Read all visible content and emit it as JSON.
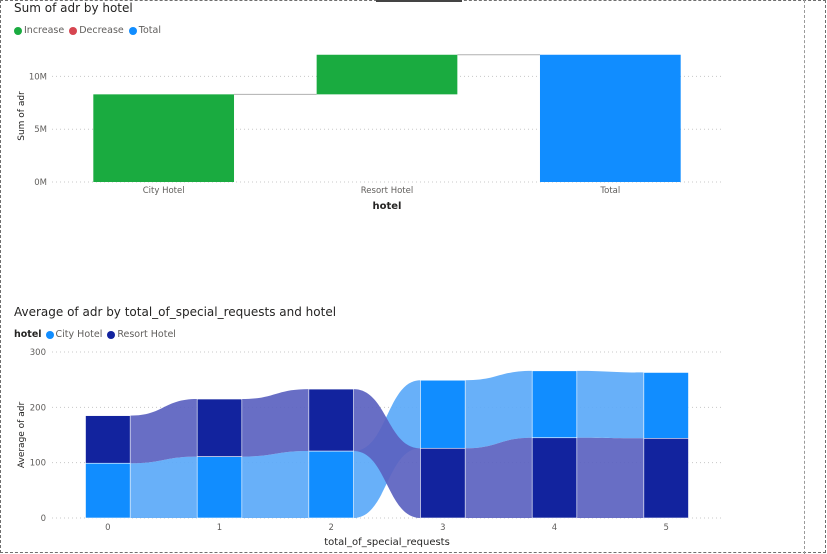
{
  "chart_data": [
    {
      "type": "waterfall",
      "title": "Sum of adr by hotel",
      "xlabel": "hotel",
      "ylabel": "Sum of adr",
      "legend": {
        "position": "top-left",
        "items": [
          {
            "label": "Increase",
            "color": "#1aab40"
          },
          {
            "label": "Decrease",
            "color": "#d64550"
          },
          {
            "label": "Total",
            "color": "#118dff"
          }
        ]
      },
      "categories": [
        "City Hotel",
        "Resort Hotel",
        "Total"
      ],
      "values": [
        8300000,
        3750000,
        12050000
      ],
      "bar_types": [
        "increase",
        "increase",
        "total"
      ],
      "yticks": [
        {
          "value": 0,
          "label": "0M"
        },
        {
          "value": 5000000,
          "label": "5M"
        },
        {
          "value": 10000000,
          "label": "10M"
        }
      ],
      "ylim": [
        0,
        12500000
      ],
      "grid": true
    },
    {
      "type": "ribbon",
      "title": "Average of adr by total_of_special_requests and hotel",
      "xlabel": "total_of_special_requests",
      "ylabel": "Average of adr",
      "legend": {
        "position": "top-left",
        "title": "hotel",
        "items": [
          {
            "label": "City Hotel",
            "color": "#118dff"
          },
          {
            "label": "Resort Hotel",
            "color": "#12239e"
          }
        ]
      },
      "categories": [
        "0",
        "1",
        "2",
        "3",
        "4",
        "5"
      ],
      "series": [
        {
          "name": "City Hotel",
          "values": [
            99,
            111,
            121,
            123,
            121,
            119
          ]
        },
        {
          "name": "Resort Hotel",
          "values": [
            86,
            104,
            112,
            126,
            145,
            144
          ]
        }
      ],
      "yticks": [
        0,
        100,
        200,
        300
      ],
      "ylim": [
        0,
        300
      ],
      "grid": true
    }
  ]
}
